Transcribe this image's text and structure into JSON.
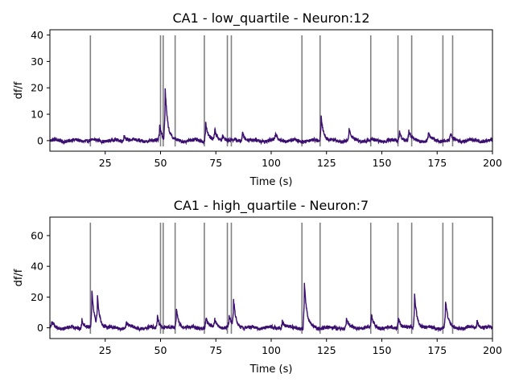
{
  "chart_data": [
    {
      "type": "line",
      "title": "CA1 - low_quartile - Neuron:12",
      "xlabel": "Time (s)",
      "ylabel": "df/f",
      "xlim": [
        0,
        200
      ],
      "ylim": [
        -4,
        42
      ],
      "xticks": [
        "25",
        "50",
        "75",
        "100",
        "125",
        "150",
        "175",
        "200"
      ],
      "yticks": [
        "0",
        "10",
        "20",
        "30",
        "40"
      ],
      "event_lines": [
        18.3,
        50.0,
        51.2,
        56.6,
        69.8,
        80.2,
        82.0,
        113.9,
        122.1,
        145.0,
        157.3,
        163.5,
        177.6,
        182.0
      ],
      "event_color": "#808080",
      "trace_color": "#3b0f70",
      "peaks": [
        {
          "x": 33.5,
          "y": 2.5
        },
        {
          "x": 49.6,
          "y": 6.0
        },
        {
          "x": 52.1,
          "y": 19.8
        },
        {
          "x": 70.4,
          "y": 7.2
        },
        {
          "x": 74.5,
          "y": 4.0
        },
        {
          "x": 78.0,
          "y": 2.2
        },
        {
          "x": 87.0,
          "y": 3.5
        },
        {
          "x": 102.0,
          "y": 2.8
        },
        {
          "x": 122.6,
          "y": 9.5
        },
        {
          "x": 135.2,
          "y": 4.2
        },
        {
          "x": 158.0,
          "y": 3.6
        },
        {
          "x": 162.2,
          "y": 3.4
        },
        {
          "x": 171.0,
          "y": 2.8
        },
        {
          "x": 181.0,
          "y": 2.2
        }
      ]
    },
    {
      "type": "line",
      "title": "CA1 - high_quartile - Neuron:7",
      "xlabel": "Time (s)",
      "ylabel": "df/f",
      "xlim": [
        0,
        200
      ],
      "ylim": [
        -7,
        72
      ],
      "xticks": [
        "25",
        "50",
        "75",
        "100",
        "125",
        "150",
        "175",
        "200"
      ],
      "yticks": [
        "0",
        "20",
        "40",
        "60"
      ],
      "event_lines": [
        18.3,
        50.0,
        51.2,
        56.6,
        69.8,
        80.2,
        82.0,
        113.9,
        122.1,
        145.0,
        157.3,
        163.5,
        177.6,
        182.0
      ],
      "event_color": "#808080",
      "trace_color": "#3b0f70",
      "peaks": [
        {
          "x": 0.8,
          "y": 3.5
        },
        {
          "x": 14.5,
          "y": 6.0
        },
        {
          "x": 19.0,
          "y": 23.5
        },
        {
          "x": 21.5,
          "y": 18.5
        },
        {
          "x": 34.5,
          "y": 3.5
        },
        {
          "x": 48.6,
          "y": 8.0
        },
        {
          "x": 57.2,
          "y": 12.5
        },
        {
          "x": 70.5,
          "y": 6.5
        },
        {
          "x": 74.5,
          "y": 5.5
        },
        {
          "x": 81.0,
          "y": 7.5
        },
        {
          "x": 83.0,
          "y": 17.0
        },
        {
          "x": 105.0,
          "y": 5.0
        },
        {
          "x": 115.0,
          "y": 29.5
        },
        {
          "x": 134.0,
          "y": 5.0
        },
        {
          "x": 145.3,
          "y": 8.0
        },
        {
          "x": 157.5,
          "y": 7.5
        },
        {
          "x": 164.8,
          "y": 22.5
        },
        {
          "x": 178.8,
          "y": 17.5
        },
        {
          "x": 193.0,
          "y": 5.0
        }
      ]
    }
  ]
}
